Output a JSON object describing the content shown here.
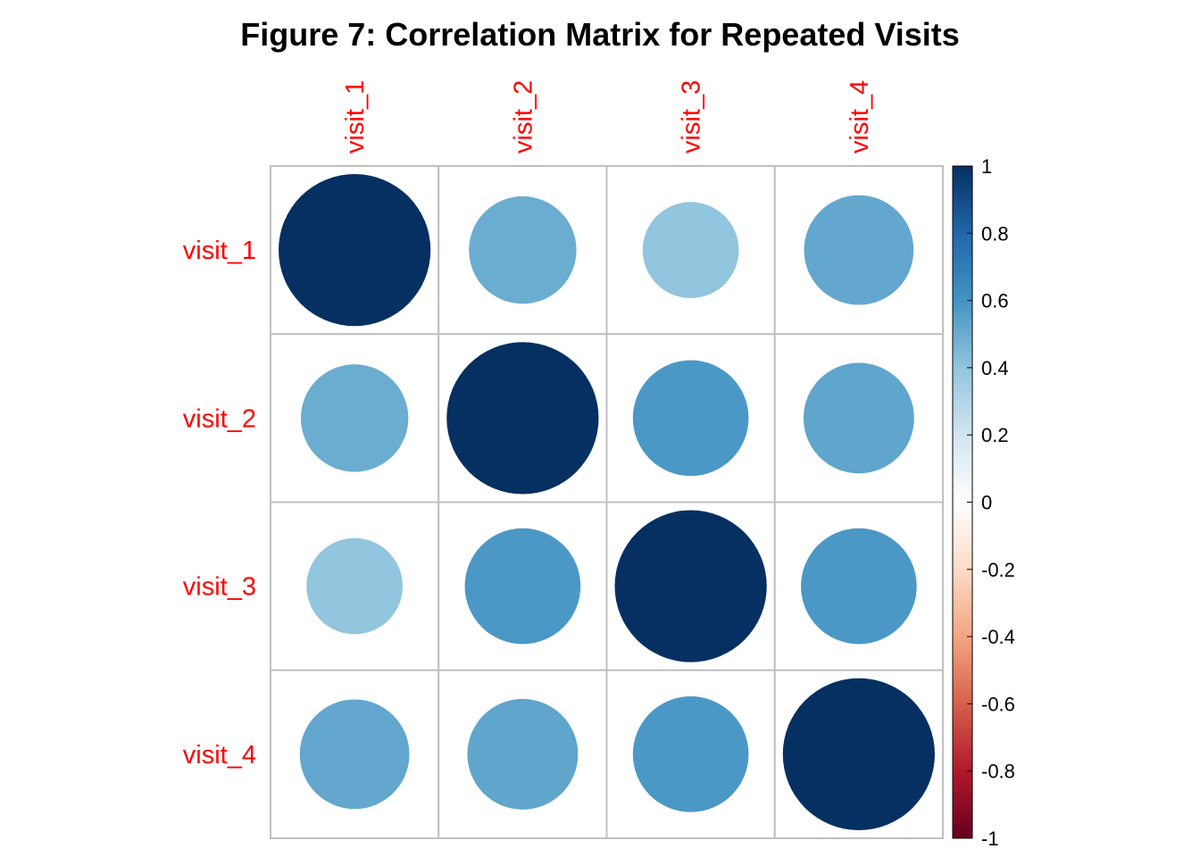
{
  "chart_data": {
    "type": "heatmap",
    "title": "Figure 7: Correlation Matrix for Repeated Visits",
    "method": "circle",
    "row_labels": [
      "visit_1",
      "visit_2",
      "visit_3",
      "visit_4"
    ],
    "col_labels": [
      "visit_1",
      "visit_2",
      "visit_3",
      "visit_4"
    ],
    "matrix": [
      [
        1.0,
        0.5,
        0.4,
        0.52
      ],
      [
        0.5,
        1.0,
        0.58,
        0.53
      ],
      [
        0.4,
        0.58,
        1.0,
        0.58
      ],
      [
        0.52,
        0.53,
        0.58,
        1.0
      ]
    ],
    "colorbar": {
      "range": [
        -1,
        1
      ],
      "ticks": [
        "1",
        "0.8",
        "0.6",
        "0.4",
        "0.2",
        "0",
        "-0.2",
        "-0.4",
        "-0.6",
        "-0.8",
        "-1"
      ]
    },
    "label_color": "#FF0000",
    "grid_color": "#C0C0C0",
    "palette": [
      "#67001F",
      "#B2182B",
      "#D6604D",
      "#F4A582",
      "#FDDBC7",
      "#FFFFFF",
      "#D1E5F0",
      "#92C5DE",
      "#4393C3",
      "#2166AC",
      "#053061"
    ]
  }
}
